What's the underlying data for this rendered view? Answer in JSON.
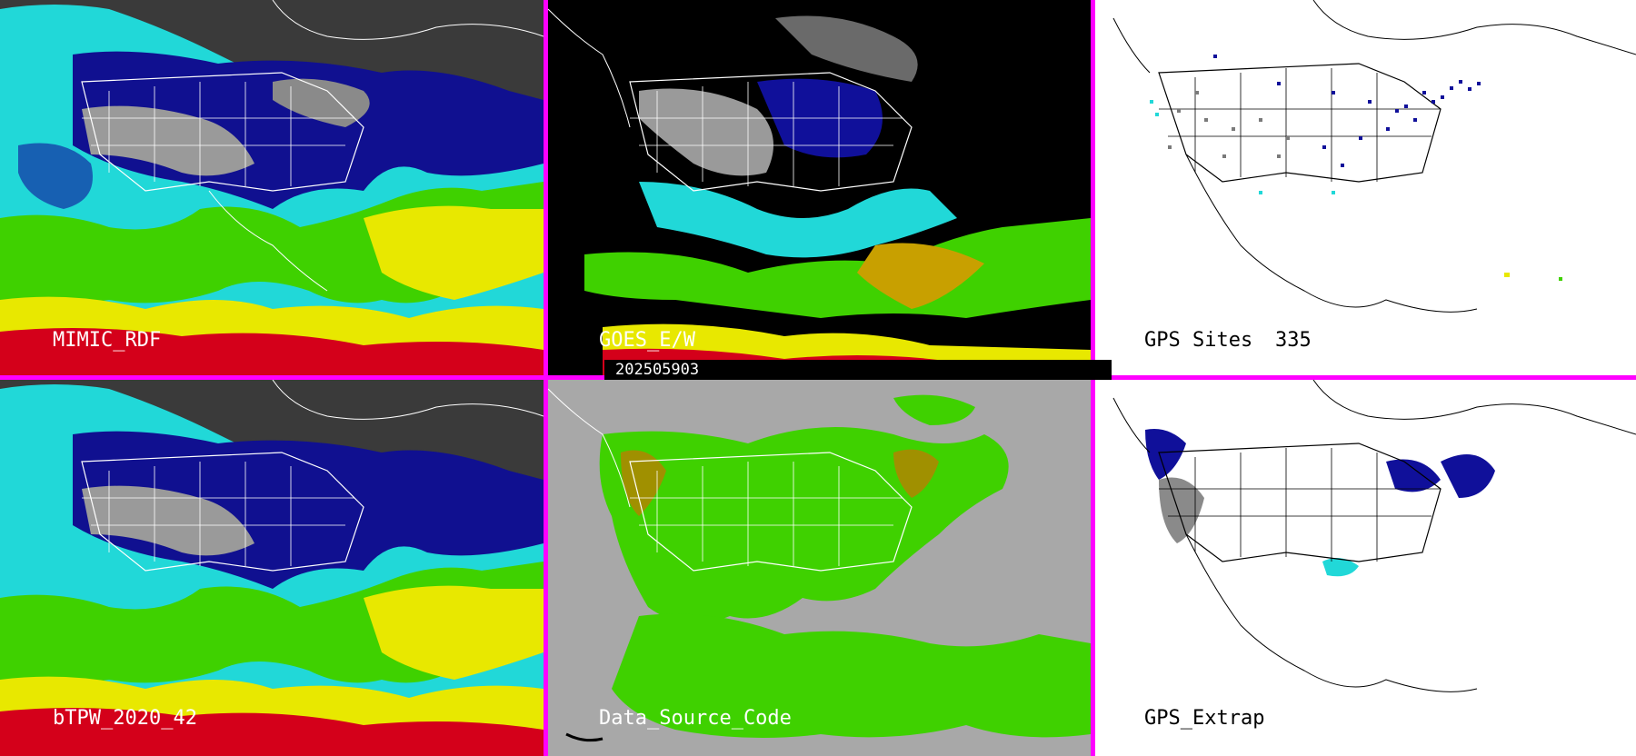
{
  "panels": [
    {
      "id": "p1",
      "label": "MIMIC_RDF",
      "style": "tpw"
    },
    {
      "id": "p2",
      "label": "GOES_E/W",
      "style": "goes"
    },
    {
      "id": "p3",
      "label": "GPS Sites",
      "count": "335",
      "style": "gps"
    },
    {
      "id": "p4",
      "label": "bTPW_2020_42",
      "style": "tpw"
    },
    {
      "id": "p5",
      "label": "Data_Source_Code",
      "style": "dsc"
    },
    {
      "id": "p6",
      "label": "GPS_Extrap",
      "style": "extrap"
    }
  ],
  "date": "202505903",
  "colors": {
    "divider": "#ff00ff",
    "red": "#d4001a",
    "yellow": "#e8e800",
    "green": "#3fd100",
    "cyan": "#20e0e0",
    "blue": "#0a0aa0",
    "gray": "#a8a8a8",
    "olive": "#a09000",
    "white": "#ffffff",
    "black": "#000000"
  }
}
